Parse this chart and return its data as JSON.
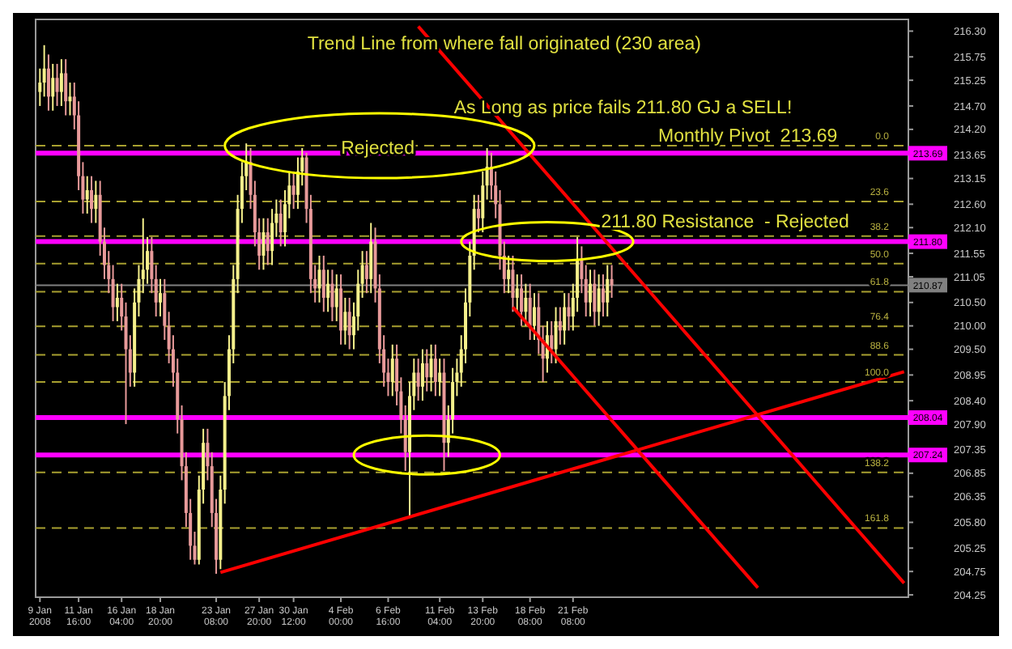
{
  "chart_data": {
    "type": "candlestick",
    "categories": [
      "9 Jan 2008",
      null,
      null,
      null,
      null,
      null,
      null,
      null,
      null,
      "11 Jan 16:00",
      null,
      null,
      null,
      null,
      null,
      null,
      null,
      null,
      null,
      "16 Jan 04:00",
      null,
      null,
      null,
      null,
      null,
      null,
      null,
      null,
      "18 Jan 20:00",
      null,
      null,
      null,
      null,
      null,
      null,
      null,
      null,
      null,
      null,
      null,
      null,
      "23 Jan 08:00",
      null,
      null,
      null,
      null,
      null,
      null,
      null,
      null,
      null,
      "27 Jan 20:00",
      null,
      null,
      null,
      null,
      null,
      null,
      null,
      "30 Jan 12:00",
      null,
      null,
      null,
      null,
      null,
      null,
      null,
      null,
      null,
      null,
      "4 Feb 00:00",
      null,
      null,
      null,
      null,
      null,
      null,
      null,
      null,
      null,
      null,
      "6 Feb 16:00",
      null,
      null,
      null,
      null,
      null,
      null,
      null,
      null,
      null,
      null,
      null,
      "11 Feb 04:00",
      null,
      null,
      null,
      null,
      null,
      null,
      null,
      null,
      null,
      "13 Feb 20:00",
      null,
      null,
      null,
      null,
      null,
      null,
      null,
      null,
      null,
      null,
      "18 Feb 08:00",
      null,
      null,
      null,
      null,
      null,
      null,
      null,
      null,
      null,
      "21 Feb 08:00",
      null,
      null,
      null,
      null,
      null,
      null,
      null,
      null,
      null,
      null,
      null,
      null,
      null,
      null,
      null,
      null,
      null,
      null,
      null,
      null,
      null,
      null,
      null,
      null,
      null,
      null,
      null,
      null,
      null,
      null,
      null,
      null,
      null,
      null,
      null,
      null,
      null,
      null,
      null,
      null,
      null,
      null,
      null,
      null,
      null,
      null,
      null,
      null,
      null,
      null,
      null,
      null,
      null,
      null,
      null,
      null,
      null,
      null,
      null,
      null,
      null,
      null,
      null,
      null,
      null,
      null,
      null,
      null,
      null,
      null,
      null,
      null,
      null,
      null,
      null,
      null,
      null
    ],
    "ohlc": [
      [
        215.0,
        215.5,
        214.7,
        215.2
      ],
      [
        215.2,
        216.0,
        214.9,
        215.5
      ],
      [
        215.5,
        215.8,
        214.6,
        214.9
      ],
      [
        214.9,
        215.6,
        214.6,
        215.3
      ],
      [
        215.3,
        215.6,
        214.7,
        215.0
      ],
      [
        215.0,
        215.7,
        214.7,
        215.4
      ],
      [
        215.4,
        215.7,
        214.5,
        214.8
      ],
      [
        214.8,
        215.2,
        214.5,
        214.9
      ],
      [
        214.9,
        215.2,
        214.2,
        214.5
      ],
      [
        214.5,
        214.8,
        212.9,
        213.2
      ],
      [
        213.2,
        213.5,
        212.4,
        212.7
      ],
      [
        212.7,
        213.2,
        212.4,
        212.9
      ],
      [
        212.9,
        213.2,
        212.2,
        212.5
      ],
      [
        212.5,
        213.1,
        212.2,
        212.8
      ],
      [
        212.8,
        213.1,
        211.5,
        211.8
      ],
      [
        211.8,
        212.1,
        211.0,
        211.3
      ],
      [
        211.3,
        211.6,
        210.7,
        211.0
      ],
      [
        211.0,
        211.3,
        210.1,
        210.4
      ],
      [
        210.4,
        210.9,
        210.1,
        210.6
      ],
      [
        210.6,
        210.9,
        209.9,
        210.2
      ],
      [
        210.2,
        210.5,
        207.9,
        209.5
      ],
      [
        209.5,
        209.8,
        208.7,
        209.0
      ],
      [
        209.0,
        210.8,
        208.7,
        210.5
      ],
      [
        210.5,
        211.3,
        210.2,
        211.0
      ],
      [
        211.0,
        212.3,
        210.7,
        211.2
      ],
      [
        211.2,
        211.9,
        210.9,
        211.6
      ],
      [
        211.6,
        211.9,
        210.7,
        211.0
      ],
      [
        211.0,
        211.3,
        210.2,
        210.5
      ],
      [
        210.5,
        211.0,
        210.2,
        210.7
      ],
      [
        210.7,
        211.0,
        209.7,
        210.0
      ],
      [
        210.0,
        210.3,
        209.2,
        209.5
      ],
      [
        209.5,
        209.8,
        208.7,
        209.0
      ],
      [
        209.0,
        209.3,
        207.7,
        208.0
      ],
      [
        208.0,
        208.3,
        206.7,
        207.0
      ],
      [
        207.0,
        207.3,
        205.7,
        206.0
      ],
      [
        206.0,
        206.3,
        205.0,
        205.3
      ],
      [
        205.3,
        205.6,
        204.9,
        205.0
      ],
      [
        205.0,
        206.8,
        204.9,
        206.5
      ],
      [
        206.5,
        207.8,
        206.2,
        207.5
      ],
      [
        207.5,
        207.8,
        206.7,
        207.0
      ],
      [
        207.0,
        207.3,
        205.7,
        206.0
      ],
      [
        206.0,
        206.3,
        204.7,
        205.0
      ],
      [
        205.0,
        206.8,
        204.8,
        206.5
      ],
      [
        206.5,
        208.8,
        206.2,
        208.5
      ],
      [
        208.5,
        209.8,
        208.2,
        209.5
      ],
      [
        209.5,
        211.3,
        209.2,
        211.0
      ],
      [
        211.0,
        212.8,
        210.7,
        212.5
      ],
      [
        212.5,
        213.5,
        212.2,
        213.2
      ],
      [
        213.2,
        213.9,
        212.9,
        213.5
      ],
      [
        213.5,
        213.8,
        212.5,
        212.8
      ],
      [
        212.8,
        213.1,
        211.7,
        212.0
      ],
      [
        212.0,
        212.3,
        211.2,
        211.5
      ],
      [
        211.5,
        212.3,
        211.2,
        212.0
      ],
      [
        212.0,
        212.3,
        211.3,
        211.6
      ],
      [
        211.6,
        212.5,
        211.3,
        212.2
      ],
      [
        212.2,
        212.7,
        211.9,
        212.4
      ],
      [
        212.4,
        212.7,
        211.7,
        212.0
      ],
      [
        212.0,
        212.9,
        211.7,
        212.6
      ],
      [
        212.6,
        213.3,
        212.3,
        213.0
      ],
      [
        213.0,
        213.3,
        212.5,
        212.8
      ],
      [
        212.8,
        213.6,
        212.5,
        213.3
      ],
      [
        213.3,
        213.8,
        213.0,
        213.6
      ],
      [
        213.6,
        213.7,
        212.2,
        212.5
      ],
      [
        212.5,
        212.8,
        210.7,
        211.0
      ],
      [
        211.0,
        211.3,
        210.5,
        210.8
      ],
      [
        210.8,
        211.5,
        210.5,
        211.2
      ],
      [
        211.2,
        211.5,
        210.3,
        210.6
      ],
      [
        210.6,
        211.2,
        210.3,
        210.9
      ],
      [
        210.9,
        211.2,
        210.1,
        210.4
      ],
      [
        210.4,
        211.1,
        210.1,
        210.8
      ],
      [
        210.8,
        211.1,
        209.6,
        209.9
      ],
      [
        209.9,
        210.6,
        209.6,
        210.3
      ],
      [
        210.3,
        210.6,
        209.5,
        209.8
      ],
      [
        209.8,
        210.5,
        209.5,
        210.2
      ],
      [
        210.2,
        211.2,
        209.9,
        210.9
      ],
      [
        210.9,
        211.6,
        210.6,
        211.3
      ],
      [
        211.3,
        211.6,
        210.7,
        211.0
      ],
      [
        211.0,
        212.2,
        210.7,
        211.8
      ],
      [
        211.8,
        212.1,
        210.5,
        210.8
      ],
      [
        210.8,
        211.1,
        209.2,
        209.5
      ],
      [
        209.5,
        209.8,
        208.7,
        209.0
      ],
      [
        209.0,
        209.3,
        208.5,
        208.8
      ],
      [
        208.8,
        209.6,
        208.5,
        209.3
      ],
      [
        209.3,
        209.6,
        208.3,
        208.6
      ],
      [
        208.6,
        208.9,
        207.7,
        208.0
      ],
      [
        208.0,
        208.3,
        206.9,
        207.3
      ],
      [
        207.3,
        208.8,
        205.9,
        208.5
      ],
      [
        208.5,
        209.3,
        208.2,
        209.0
      ],
      [
        209.0,
        209.3,
        208.4,
        208.7
      ],
      [
        208.7,
        209.5,
        208.4,
        209.2
      ],
      [
        209.2,
        209.5,
        208.6,
        208.9
      ],
      [
        208.9,
        209.6,
        208.6,
        209.3
      ],
      [
        209.3,
        209.6,
        208.5,
        208.8
      ],
      [
        208.8,
        209.3,
        208.5,
        209.0
      ],
      [
        209.0,
        209.3,
        206.9,
        207.5
      ],
      [
        207.5,
        208.3,
        207.2,
        208.0
      ],
      [
        208.0,
        209.1,
        207.7,
        208.8
      ],
      [
        208.8,
        209.3,
        208.5,
        209.0
      ],
      [
        209.0,
        209.8,
        208.7,
        209.5
      ],
      [
        209.5,
        210.8,
        209.2,
        210.5
      ],
      [
        210.5,
        211.8,
        210.2,
        211.5
      ],
      [
        211.5,
        212.8,
        211.2,
        212.5
      ],
      [
        212.5,
        212.8,
        212.0,
        212.3
      ],
      [
        212.3,
        213.3,
        212.0,
        213.0
      ],
      [
        213.0,
        213.8,
        212.7,
        213.4
      ],
      [
        213.4,
        213.7,
        212.7,
        213.0
      ],
      [
        213.0,
        213.3,
        212.3,
        212.6
      ],
      [
        212.6,
        212.9,
        211.2,
        211.5
      ],
      [
        211.5,
        211.8,
        210.7,
        211.0
      ],
      [
        211.0,
        211.5,
        210.7,
        211.2
      ],
      [
        211.2,
        211.5,
        210.3,
        210.6
      ],
      [
        210.6,
        211.1,
        210.3,
        210.8
      ],
      [
        210.8,
        211.1,
        210.0,
        210.3
      ],
      [
        210.3,
        210.9,
        210.0,
        210.6
      ],
      [
        210.6,
        210.9,
        209.7,
        210.0
      ],
      [
        210.0,
        210.7,
        209.7,
        210.4
      ],
      [
        210.4,
        210.7,
        209.4,
        209.7
      ],
      [
        209.7,
        210.0,
        208.8,
        209.3
      ],
      [
        209.3,
        210.1,
        209.0,
        209.8
      ],
      [
        209.8,
        210.1,
        209.2,
        209.5
      ],
      [
        209.5,
        210.4,
        209.2,
        210.1
      ],
      [
        210.1,
        210.4,
        209.6,
        209.9
      ],
      [
        209.9,
        210.7,
        209.6,
        210.4
      ],
      [
        210.4,
        210.7,
        209.9,
        210.2
      ],
      [
        210.2,
        210.9,
        209.9,
        210.6
      ],
      [
        210.6,
        211.9,
        210.3,
        211.4
      ],
      [
        211.4,
        211.7,
        210.7,
        211.0
      ],
      [
        211.0,
        211.3,
        210.2,
        210.5
      ],
      [
        210.5,
        211.2,
        210.2,
        210.9
      ],
      [
        210.9,
        211.2,
        210.0,
        210.3
      ],
      [
        210.3,
        211.1,
        210.0,
        210.8
      ],
      [
        210.8,
        211.1,
        210.2,
        210.5
      ],
      [
        210.5,
        211.3,
        210.2,
        211.0
      ],
      [
        211.0,
        211.3,
        210.6,
        210.87
      ],
      null,
      null,
      null,
      null,
      null,
      null,
      null,
      null,
      null,
      null,
      null,
      null,
      null,
      null,
      null,
      null,
      null,
      null,
      null,
      null,
      null,
      null,
      null,
      null,
      null,
      null,
      null,
      null,
      null,
      null,
      null,
      null,
      null,
      null,
      null,
      null,
      null,
      null,
      null,
      null,
      null,
      null,
      null,
      null,
      null,
      null,
      null,
      null,
      null,
      null,
      null,
      null,
      null,
      null,
      null,
      null,
      null,
      null,
      null,
      null,
      null,
      null,
      null,
      null,
      null,
      null,
      null,
      null
    ],
    "series": [
      {
        "type": "line",
        "color": "#ff0000",
        "values": [
          null,
          null,
          null,
          null,
          null,
          null,
          null,
          null,
          null,
          null,
          null,
          null,
          null,
          null,
          null,
          null,
          null,
          null,
          null,
          null,
          null,
          null,
          null,
          null,
          null,
          null,
          null,
          null,
          null,
          null,
          null,
          null,
          null,
          null,
          null,
          null,
          null,
          null,
          null,
          null,
          null,
          null,
          204.73,
          null,
          null,
          null,
          null,
          null,
          null,
          null,
          null,
          null,
          null,
          null,
          null,
          null,
          null,
          null,
          null,
          null,
          null,
          null,
          null,
          null,
          null,
          null,
          null,
          null,
          null,
          null,
          null,
          null,
          null,
          null,
          null,
          null,
          null,
          null,
          null,
          null,
          null,
          null,
          null,
          null,
          null,
          null,
          null,
          null,
          null,
          null,
          null,
          null,
          null,
          null,
          null,
          null,
          null,
          null,
          null,
          null,
          null,
          null,
          null,
          null,
          null,
          null,
          null,
          null,
          null,
          null,
          null,
          null,
          null,
          null,
          null,
          null,
          null,
          null,
          null,
          null,
          null,
          null,
          null,
          null,
          null,
          null,
          null,
          null,
          null,
          null,
          null,
          null,
          null,
          null,
          null,
          null,
          null,
          null,
          null,
          null,
          null,
          null,
          null,
          null,
          null,
          null,
          null,
          null,
          null,
          null,
          null,
          null,
          null,
          null,
          null,
          null,
          null,
          null,
          null,
          null,
          null,
          null,
          null,
          null,
          null,
          null,
          null,
          null,
          null,
          null,
          null,
          null,
          null,
          null,
          null,
          null,
          null,
          null,
          null,
          null,
          null,
          null,
          null,
          null,
          null,
          null,
          null,
          null,
          null,
          null,
          null,
          null,
          null,
          null,
          null,
          null,
          null,
          null,
          null,
          null,
          null,
          209.02
        ]
      },
      {
        "type": "line",
        "color": "#ff0000",
        "values": [
          null,
          null,
          null,
          null,
          null,
          null,
          null,
          null,
          null,
          null,
          null,
          null,
          null,
          null,
          null,
          null,
          null,
          null,
          null,
          null,
          null,
          null,
          null,
          null,
          null,
          null,
          null,
          null,
          null,
          null,
          null,
          null,
          null,
          null,
          null,
          null,
          null,
          null,
          null,
          null,
          null,
          null,
          null,
          null,
          null,
          null,
          null,
          null,
          null,
          null,
          null,
          null,
          null,
          null,
          null,
          null,
          null,
          null,
          null,
          null,
          null,
          null,
          null,
          null,
          null,
          null,
          null,
          null,
          null,
          null,
          null,
          null,
          null,
          null,
          null,
          null,
          null,
          null,
          null,
          null,
          null,
          null,
          null,
          null,
          null,
          null,
          null,
          null,
          216.4,
          null,
          null,
          null,
          null,
          null,
          null,
          null,
          null,
          null,
          null,
          null,
          null,
          null,
          null,
          null,
          null,
          null,
          null,
          null,
          null,
          null,
          null,
          null,
          null,
          null,
          null,
          null,
          null,
          null,
          null,
          null,
          null,
          null,
          null,
          null,
          null,
          null,
          null,
          null,
          null,
          null,
          null,
          null,
          null,
          null,
          null,
          null,
          null,
          null,
          null,
          null,
          null,
          null,
          null,
          null,
          null,
          null,
          null,
          null,
          null,
          null,
          null,
          null,
          null,
          null,
          null,
          null,
          null,
          null,
          null,
          null,
          null,
          null,
          null,
          null,
          null,
          null,
          null,
          null,
          null,
          null,
          null,
          null,
          null,
          null,
          null,
          null,
          null,
          null,
          null,
          null,
          null,
          null,
          null,
          null,
          null,
          null,
          null,
          null,
          null,
          null,
          null,
          null,
          null,
          null,
          null,
          null,
          null,
          null,
          null,
          null,
          null,
          204.5
        ]
      },
      {
        "type": "line",
        "color": "#ff0000",
        "values": [
          null,
          null,
          null,
          null,
          null,
          null,
          null,
          null,
          null,
          null,
          null,
          null,
          null,
          null,
          null,
          null,
          null,
          null,
          null,
          null,
          null,
          null,
          null,
          null,
          null,
          null,
          null,
          null,
          null,
          null,
          null,
          null,
          null,
          null,
          null,
          null,
          null,
          null,
          null,
          null,
          null,
          null,
          null,
          null,
          null,
          null,
          null,
          null,
          null,
          null,
          null,
          null,
          null,
          null,
          null,
          null,
          null,
          null,
          null,
          null,
          null,
          null,
          null,
          null,
          null,
          null,
          null,
          null,
          null,
          null,
          null,
          null,
          null,
          null,
          null,
          null,
          null,
          null,
          null,
          null,
          null,
          null,
          null,
          null,
          null,
          null,
          null,
          null,
          null,
          null,
          null,
          null,
          null,
          null,
          null,
          null,
          null,
          null,
          null,
          null,
          null,
          null,
          null,
          null,
          null,
          null,
          null,
          null,
          null,
          null,
          210.4,
          null,
          null,
          null,
          null,
          null,
          null,
          null,
          null,
          null,
          null,
          null,
          null,
          null,
          null,
          null,
          null,
          null,
          null,
          null,
          null,
          null,
          null,
          null,
          null,
          null,
          null,
          null,
          null,
          null,
          null,
          null,
          null,
          null,
          null,
          null,
          null,
          null,
          null,
          null,
          null,
          null,
          null,
          null,
          null,
          null,
          null,
          null,
          null,
          null,
          null,
          null,
          null,
          null,
          null,
          null,
          null,
          204.4,
          null,
          null,
          null,
          null,
          null,
          null,
          null,
          null,
          null,
          null,
          null,
          null,
          null,
          null,
          null,
          null,
          null,
          null,
          null,
          null,
          null,
          null,
          null,
          null,
          null,
          null,
          null,
          null,
          null,
          null,
          null,
          null,
          null,
          null
        ]
      }
    ],
    "ylim": [
      204.2,
      216.55
    ],
    "yticks": [
      {
        "value": 216.3,
        "label": "216.30"
      },
      {
        "value": 215.75,
        "label": "215.75"
      },
      {
        "value": 215.25,
        "label": "215.25"
      },
      {
        "value": 214.7,
        "label": "214.70"
      },
      {
        "value": 214.2,
        "label": "214.20"
      },
      {
        "value": 213.65,
        "label": "213.65"
      },
      {
        "value": 213.15,
        "label": "213.15"
      },
      {
        "value": 212.6,
        "label": "212.60"
      },
      {
        "value": 212.1,
        "label": "212.10"
      },
      {
        "value": 211.55,
        "label": "211.55"
      },
      {
        "value": 211.05,
        "label": "211.05"
      },
      {
        "value": 210.5,
        "label": "210.50"
      },
      {
        "value": 210.0,
        "label": "210.00"
      },
      {
        "value": 209.5,
        "label": "209.50"
      },
      {
        "value": 208.95,
        "label": "208.95"
      },
      {
        "value": 208.4,
        "label": "208.40"
      },
      {
        "value": 207.9,
        "label": "207.90"
      },
      {
        "value": 207.35,
        "label": "207.35"
      },
      {
        "value": 206.85,
        "label": "206.85"
      },
      {
        "value": 206.35,
        "label": "206.35"
      },
      {
        "value": 205.8,
        "label": "205.80"
      },
      {
        "value": 205.25,
        "label": "205.25"
      },
      {
        "value": 204.75,
        "label": "204.75"
      },
      {
        "value": 204.25,
        "label": "204.25"
      }
    ],
    "ref_lines": [
      {
        "axis": "y",
        "value": 213.69,
        "label": "213.69",
        "color": "#ff00ff",
        "line_style": "solid"
      },
      {
        "axis": "y",
        "value": 211.8,
        "label": "211.80",
        "color": "#ff00ff",
        "line_style": "solid"
      },
      {
        "axis": "y",
        "value": 208.04,
        "label": "208.04",
        "color": "#ff00ff",
        "line_style": "solid"
      },
      {
        "axis": "y",
        "value": 207.24,
        "label": "207.24",
        "color": "#ff00ff",
        "line_style": "solid"
      },
      {
        "axis": "y",
        "value": 210.87,
        "label": "210.87",
        "color": "#808080",
        "line_style": "solid"
      },
      {
        "axis": "y",
        "value": 213.85,
        "color": "#a8a030",
        "line_style": "dashed"
      },
      {
        "axis": "y",
        "value": 212.66,
        "color": "#a8a030",
        "line_style": "dashed"
      },
      {
        "axis": "y",
        "value": 211.92,
        "color": "#a8a030",
        "line_style": "dashed"
      },
      {
        "axis": "y",
        "value": 211.33,
        "color": "#a8a030",
        "line_style": "dashed"
      },
      {
        "axis": "y",
        "value": 210.73,
        "color": "#a8a030",
        "line_style": "dashed"
      },
      {
        "axis": "y",
        "value": 209.99,
        "color": "#a8a030",
        "line_style": "dashed"
      },
      {
        "axis": "y",
        "value": 209.38,
        "color": "#a8a030",
        "line_style": "dashed"
      },
      {
        "axis": "y",
        "value": 208.8,
        "color": "#a8a030",
        "line_style": "dashed"
      },
      {
        "axis": "y",
        "value": 206.87,
        "color": "#a8a030",
        "line_style": "dashed"
      },
      {
        "axis": "y",
        "value": 205.68,
        "color": "#a8a030",
        "line_style": "dashed"
      }
    ],
    "annotations": [
      "Trend Line from where fall originated (230 area)",
      "As Long as price fails 211.80 GJ a SELL!",
      "Rejected",
      "Monthly Pivot  213.69",
      "211.80 Resistance  - Rejected",
      {
        "text": "0.0",
        "y": 213.85
      },
      {
        "text": "23.6",
        "y": 212.66
      },
      {
        "text": "38.2",
        "y": 211.92
      },
      {
        "text": "50.0",
        "y": 211.33
      },
      {
        "text": "61.8",
        "y": 210.73
      },
      {
        "text": "76.4",
        "y": 209.99
      },
      {
        "text": "88.6",
        "y": 209.38
      },
      {
        "text": "100.0",
        "y": 208.8
      },
      {
        "text": "138.2",
        "y": 206.87
      },
      {
        "text": "161.8",
        "y": 205.68
      }
    ]
  }
}
